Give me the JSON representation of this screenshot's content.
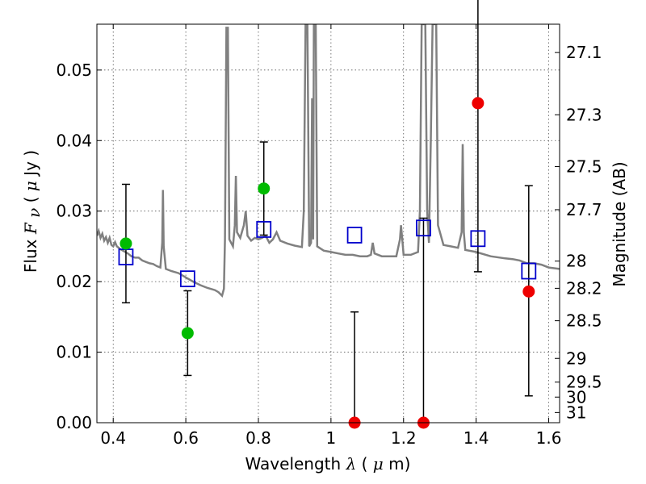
{
  "chart_data": {
    "type": "scatter",
    "xlabel_prefix": "Wavelength",
    "xlabel_symbol": "λ",
    "xlabel_unit_open": " (",
    "xlabel_unit_mu": "μ",
    "xlabel_unit_close": "m)",
    "ylabel_prefix": "Flux",
    "ylabel_symbol_main": "F",
    "ylabel_symbol_sub": "ν",
    "ylabel_unit_open": " ( ",
    "ylabel_unit_mu": "μ",
    "ylabel_unit_close": "Jy )",
    "y2label": "Magnitude (AB)",
    "xlim": [
      0.355,
      1.63
    ],
    "ylim": [
      0.0,
      0.0565
    ],
    "xticks": [
      0.4,
      0.6,
      0.8,
      1.0,
      1.2,
      1.4,
      1.6
    ],
    "xtick_labels": [
      "0.4",
      "0.6",
      "0.8",
      "1",
      "1.2",
      "1.4",
      "1.6"
    ],
    "yticks": [
      0.0,
      0.01,
      0.02,
      0.03,
      0.04,
      0.05
    ],
    "ytick_labels": [
      "0.00",
      "0.01",
      "0.02",
      "0.03",
      "0.04",
      "0.05"
    ],
    "y2ticks": [
      27.1,
      27.3,
      27.5,
      27.7,
      28.0,
      28.2,
      28.5,
      29.0,
      29.5,
      30.0,
      31.0
    ],
    "y2tick_labels": [
      "27.1",
      "27.3",
      "27.5",
      "27.7",
      "28",
      "28.2",
      "28.5",
      "29",
      "29.5",
      "30",
      "31"
    ],
    "grid": true,
    "model_spectrum": {
      "color": "#808080",
      "points": [
        [
          0.355,
          0.0265
        ],
        [
          0.36,
          0.0272
        ],
        [
          0.365,
          0.0262
        ],
        [
          0.37,
          0.0268
        ],
        [
          0.375,
          0.0258
        ],
        [
          0.38,
          0.0263
        ],
        [
          0.385,
          0.0255
        ],
        [
          0.39,
          0.0262
        ],
        [
          0.395,
          0.0252
        ],
        [
          0.4,
          0.025
        ],
        [
          0.405,
          0.0256
        ],
        [
          0.41,
          0.025
        ],
        [
          0.42,
          0.0246
        ],
        [
          0.43,
          0.0243
        ],
        [
          0.44,
          0.024
        ],
        [
          0.45,
          0.0236
        ],
        [
          0.46,
          0.0234
        ],
        [
          0.47,
          0.0234
        ],
        [
          0.48,
          0.023
        ],
        [
          0.49,
          0.0228
        ],
        [
          0.5,
          0.0226
        ],
        [
          0.51,
          0.0225
        ],
        [
          0.52,
          0.0222
        ],
        [
          0.53,
          0.022
        ],
        [
          0.535,
          0.0255
        ],
        [
          0.537,
          0.033
        ],
        [
          0.539,
          0.025
        ],
        [
          0.545,
          0.0218
        ],
        [
          0.56,
          0.0215
        ],
        [
          0.58,
          0.0212
        ],
        [
          0.6,
          0.0206
        ],
        [
          0.62,
          0.02
        ],
        [
          0.64,
          0.0195
        ],
        [
          0.66,
          0.0191
        ],
        [
          0.68,
          0.0188
        ],
        [
          0.69,
          0.0185
        ],
        [
          0.7,
          0.018
        ],
        [
          0.705,
          0.019
        ],
        [
          0.708,
          0.026
        ],
        [
          0.712,
          0.056
        ],
        [
          0.716,
          0.056
        ],
        [
          0.72,
          0.026
        ],
        [
          0.73,
          0.025
        ],
        [
          0.735,
          0.028
        ],
        [
          0.738,
          0.035
        ],
        [
          0.741,
          0.027
        ],
        [
          0.75,
          0.0262
        ],
        [
          0.76,
          0.028
        ],
        [
          0.765,
          0.03
        ],
        [
          0.77,
          0.0265
        ],
        [
          0.78,
          0.0258
        ],
        [
          0.79,
          0.0262
        ],
        [
          0.8,
          0.026
        ],
        [
          0.81,
          0.0262
        ],
        [
          0.82,
          0.0265
        ],
        [
          0.83,
          0.0255
        ],
        [
          0.84,
          0.026
        ],
        [
          0.85,
          0.027
        ],
        [
          0.86,
          0.0258
        ],
        [
          0.88,
          0.0254
        ],
        [
          0.9,
          0.0251
        ],
        [
          0.92,
          0.0249
        ],
        [
          0.925,
          0.03
        ],
        [
          0.93,
          0.0565
        ],
        [
          0.935,
          0.0565
        ],
        [
          0.94,
          0.025
        ],
        [
          0.945,
          0.0255
        ],
        [
          0.948,
          0.046
        ],
        [
          0.951,
          0.026
        ],
        [
          0.953,
          0.0565
        ],
        [
          0.958,
          0.0565
        ],
        [
          0.962,
          0.025
        ],
        [
          0.98,
          0.0244
        ],
        [
          1.0,
          0.0242
        ],
        [
          1.02,
          0.024
        ],
        [
          1.04,
          0.0238
        ],
        [
          1.06,
          0.0238
        ],
        [
          1.08,
          0.0236
        ],
        [
          1.1,
          0.0236
        ],
        [
          1.11,
          0.0238
        ],
        [
          1.115,
          0.0255
        ],
        [
          1.12,
          0.024
        ],
        [
          1.14,
          0.0236
        ],
        [
          1.16,
          0.0236
        ],
        [
          1.18,
          0.0236
        ],
        [
          1.19,
          0.026
        ],
        [
          1.193,
          0.028
        ],
        [
          1.196,
          0.0262
        ],
        [
          1.2,
          0.0238
        ],
        [
          1.22,
          0.0238
        ],
        [
          1.24,
          0.0242
        ],
        [
          1.245,
          0.03
        ],
        [
          1.25,
          0.0565
        ],
        [
          1.26,
          0.0565
        ],
        [
          1.265,
          0.03
        ],
        [
          1.27,
          0.0255
        ],
        [
          1.275,
          0.04
        ],
        [
          1.28,
          0.0565
        ],
        [
          1.29,
          0.0565
        ],
        [
          1.295,
          0.028
        ],
        [
          1.31,
          0.0252
        ],
        [
          1.33,
          0.025
        ],
        [
          1.35,
          0.0248
        ],
        [
          1.36,
          0.027
        ],
        [
          1.363,
          0.0395
        ],
        [
          1.366,
          0.027
        ],
        [
          1.37,
          0.0245
        ],
        [
          1.4,
          0.0242
        ],
        [
          1.44,
          0.0236
        ],
        [
          1.48,
          0.0233
        ],
        [
          1.5,
          0.0232
        ],
        [
          1.52,
          0.023
        ],
        [
          1.54,
          0.0226
        ],
        [
          1.56,
          0.0226
        ],
        [
          1.58,
          0.0224
        ],
        [
          1.6,
          0.022
        ],
        [
          1.63,
          0.0218
        ]
      ]
    },
    "series": [
      {
        "marker": "square",
        "color": "#0000cc",
        "x": [
          0.435,
          0.605,
          0.815,
          1.065,
          1.255,
          1.405,
          1.545
        ],
        "y": [
          0.0235,
          0.0204,
          0.0274,
          0.0266,
          0.0276,
          0.0261,
          0.0215
        ]
      },
      {
        "marker": "circle",
        "color": "#00bb00",
        "x": [
          0.435,
          0.605,
          0.815
        ],
        "y": [
          0.0254,
          0.0127,
          0.0332
        ],
        "yerr_low": [
          0.0084,
          0.006,
          0.0066
        ],
        "yerr_high": [
          0.0084,
          0.006,
          0.0066
        ]
      },
      {
        "marker": "circle",
        "color": "#ee0000",
        "x": [
          1.065,
          1.255,
          1.405,
          1.545
        ],
        "y": [
          0.0,
          0.0,
          0.0453,
          0.0186
        ],
        "yerr_low": [
          0.0,
          0.0,
          0.0239,
          0.0148
        ],
        "yerr_high": [
          0.0157,
          0.029,
          0.0239,
          0.015
        ]
      }
    ]
  }
}
